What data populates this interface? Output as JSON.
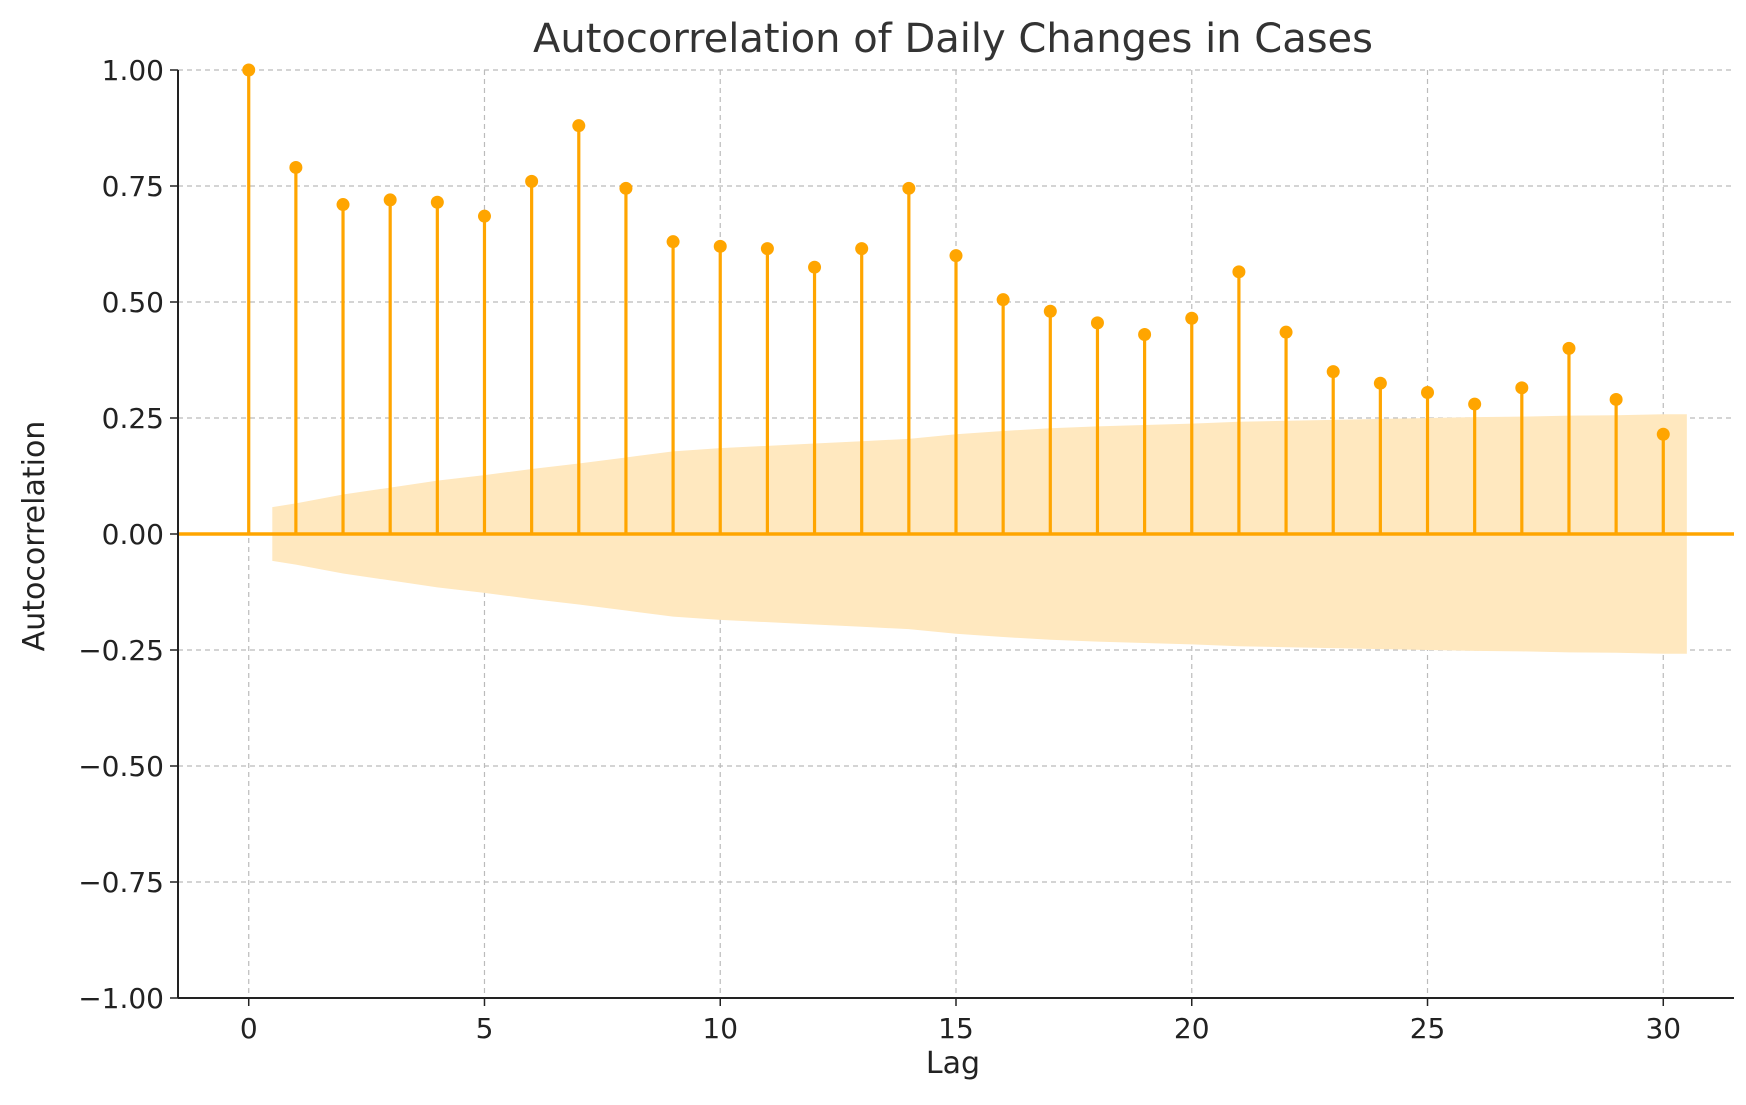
{
  "chart_data": {
    "type": "stem",
    "title": "Autocorrelation of Daily Changes in Cases",
    "xlabel": "Lag",
    "ylabel": "Autocorrelation",
    "xlim": [
      -1.5,
      31.5
    ],
    "ylim": [
      -1.0,
      1.0
    ],
    "xticks": [
      0,
      5,
      10,
      15,
      20,
      25,
      30
    ],
    "xtick_labels": [
      "0",
      "5",
      "10",
      "15",
      "20",
      "25",
      "30"
    ],
    "yticks": [
      -1.0,
      -0.75,
      -0.5,
      -0.25,
      0.0,
      0.25,
      0.5,
      0.75,
      1.0
    ],
    "ytick_labels": [
      "−1.00",
      "−0.75",
      "−0.50",
      "−0.25",
      "0.00",
      "0.25",
      "0.50",
      "0.75",
      "1.00"
    ],
    "grid": true,
    "legend": "none",
    "colors": {
      "stem": "#FFA500",
      "confidence_band": "#FFE8BF",
      "grid": "#BBBBBB",
      "axis": "#222222"
    },
    "lags": [
      0,
      1,
      2,
      3,
      4,
      5,
      6,
      7,
      8,
      9,
      10,
      11,
      12,
      13,
      14,
      15,
      16,
      17,
      18,
      19,
      20,
      21,
      22,
      23,
      24,
      25,
      26,
      27,
      28,
      29,
      30
    ],
    "acf": [
      1.0,
      0.79,
      0.71,
      0.72,
      0.715,
      0.685,
      0.76,
      0.88,
      0.745,
      0.63,
      0.62,
      0.615,
      0.575,
      0.615,
      0.745,
      0.6,
      0.505,
      0.48,
      0.455,
      0.43,
      0.465,
      0.565,
      0.435,
      0.35,
      0.325,
      0.305,
      0.28,
      0.315,
      0.4,
      0.29,
      0.215
    ],
    "confidence_interval": {
      "lag_start": 0.5,
      "lag_end": 30.5,
      "lags": [
        0.5,
        1,
        2,
        3,
        4,
        5,
        6,
        7,
        8,
        9,
        10,
        11,
        12,
        13,
        14,
        15,
        16,
        17,
        18,
        19,
        20,
        21,
        22,
        23,
        24,
        25,
        26,
        27,
        28,
        29,
        30,
        30.5
      ],
      "upper": [
        0.058,
        0.066,
        0.085,
        0.1,
        0.115,
        0.127,
        0.14,
        0.152,
        0.165,
        0.178,
        0.185,
        0.19,
        0.195,
        0.2,
        0.205,
        0.215,
        0.222,
        0.228,
        0.232,
        0.235,
        0.238,
        0.242,
        0.244,
        0.246,
        0.248,
        0.25,
        0.252,
        0.253,
        0.255,
        0.256,
        0.258,
        0.258
      ]
    }
  }
}
